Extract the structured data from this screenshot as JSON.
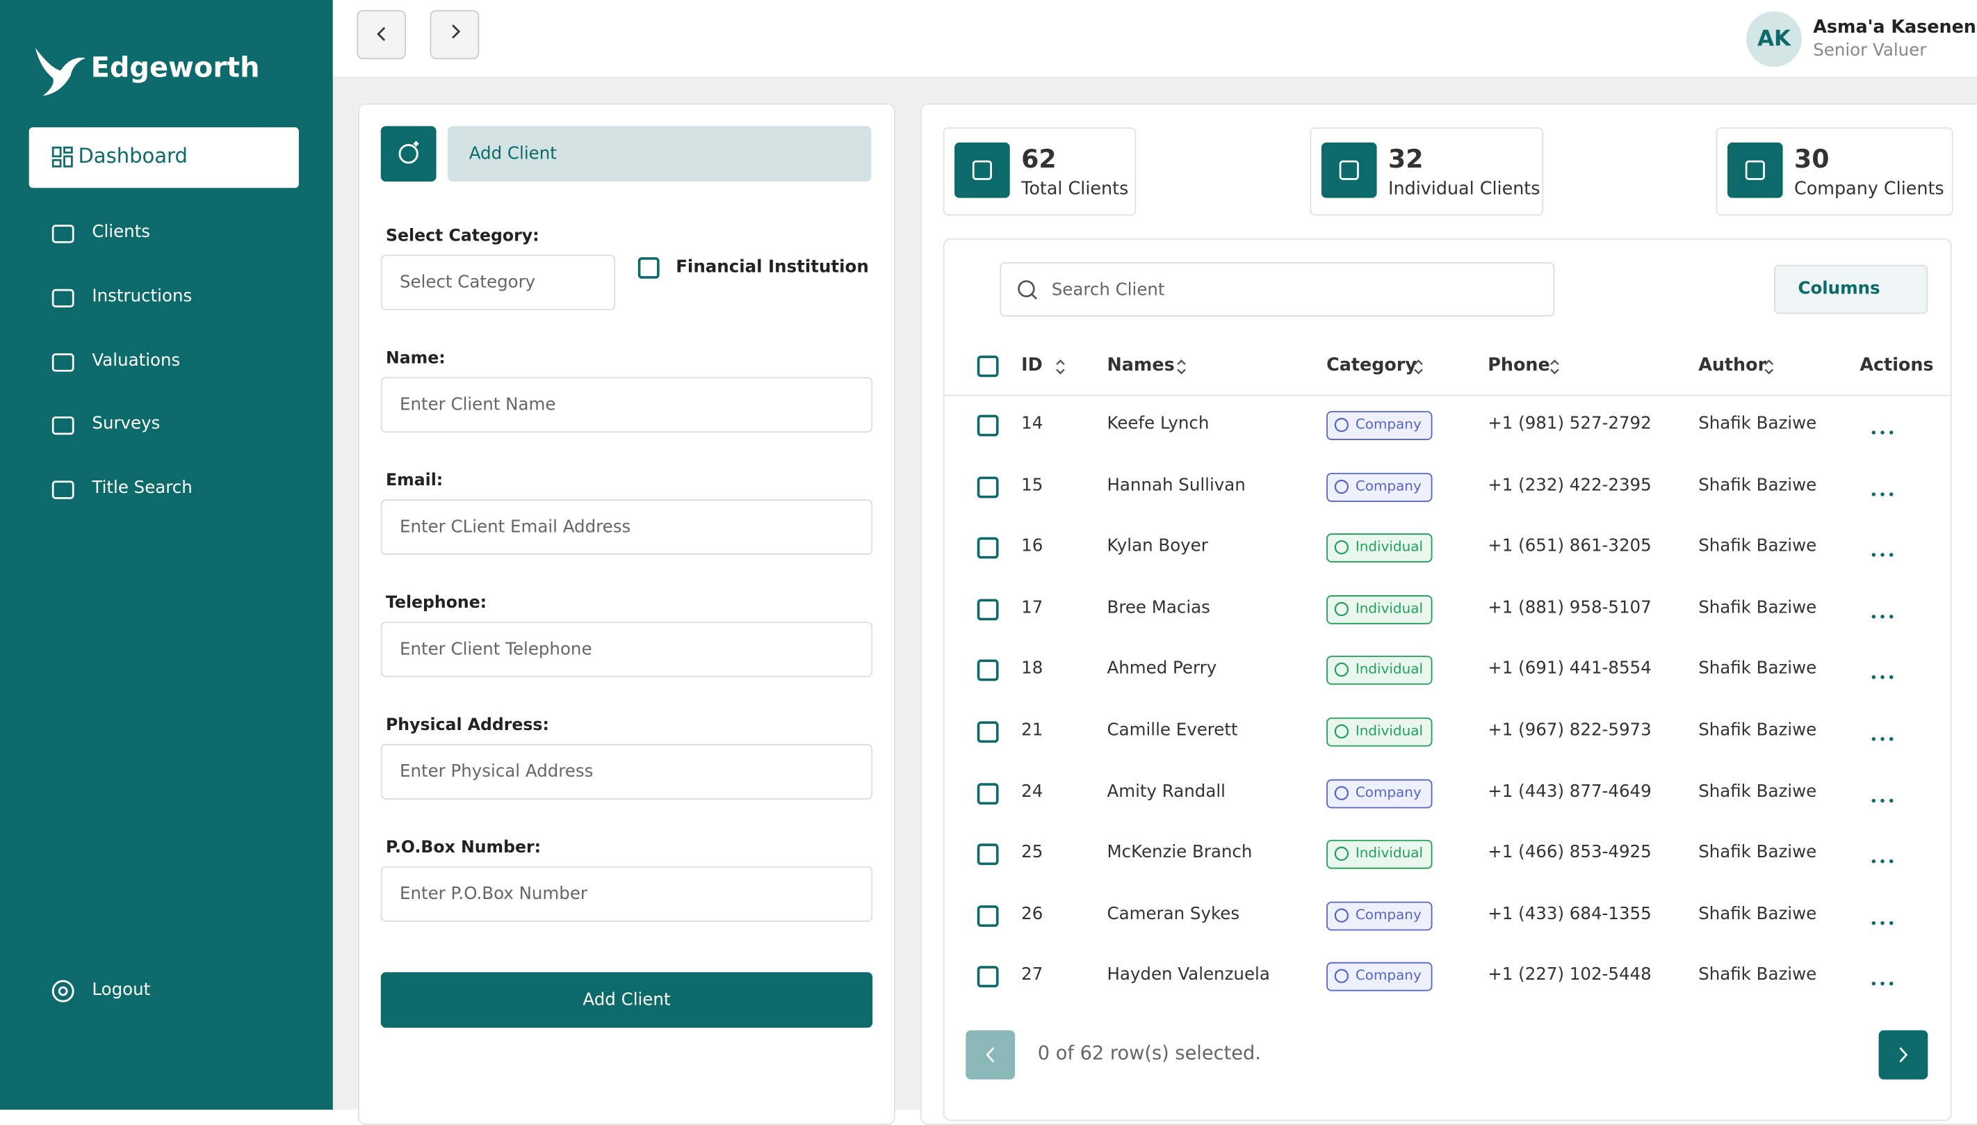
{
  "sidebar": {
    "brand": "Edgeworth",
    "nav": [
      "Dashboard",
      "Clients",
      "Instructions",
      "Valuations",
      "Surveys",
      "Title Search"
    ],
    "logout": "Logout"
  },
  "user": {
    "initials": "AK",
    "name": "Asma'a Kasenene",
    "role": "Senior Valuer"
  },
  "form": {
    "tab": "Add Client",
    "category_label": "Select Category:",
    "category_placeholder": "Select Category",
    "checkbox_label": "Financial Institution",
    "fields": [
      {
        "label": "Name:",
        "placeholder": "Enter Client Name"
      },
      {
        "label": "Email:",
        "placeholder": "Enter CLient Email Address"
      },
      {
        "label": "Telephone:",
        "placeholder": "Enter Client Telephone"
      },
      {
        "label": "Physical Address:",
        "placeholder": "Enter Physical Address"
      },
      {
        "label": "P.O.Box Number:",
        "placeholder": "Enter P.O.Box Number"
      }
    ],
    "submit": "Add Client"
  },
  "stats": [
    {
      "value": "62",
      "label": "Total Clients"
    },
    {
      "value": "32",
      "label": "Individual Clients"
    },
    {
      "value": "30",
      "label": "Company Clients"
    }
  ],
  "table": {
    "search_placeholder": "Search Client",
    "columns_button": "Columns",
    "headers": [
      "ID",
      "Names",
      "Category",
      "Phone",
      "Author",
      "Actions"
    ],
    "rows": [
      [
        "14",
        "Keefe Lynch",
        "Company",
        "+1 (981) 527-2792",
        "Shafik Baziwe"
      ],
      [
        "15",
        "Hannah Sullivan",
        "Company",
        "+1 (232) 422-2395",
        "Shafik Baziwe"
      ],
      [
        "16",
        "Kylan Boyer",
        "Individual",
        "+1 (651) 861-3205",
        "Shafik Baziwe"
      ],
      [
        "17",
        "Bree Macias",
        "Individual",
        "+1 (881) 958-5107",
        "Shafik Baziwe"
      ],
      [
        "18",
        "Ahmed Perry",
        "Individual",
        "+1 (691) 441-8554",
        "Shafik Baziwe"
      ],
      [
        "21",
        "Camille Everett",
        "Individual",
        "+1 (967) 822-5973",
        "Shafik Baziwe"
      ],
      [
        "24",
        "Amity Randall",
        "Company",
        "+1 (443) 877-4649",
        "Shafik Baziwe"
      ],
      [
        "25",
        "McKenzie Branch",
        "Individual",
        "+1 (466) 853-4925",
        "Shafik Baziwe"
      ],
      [
        "26",
        "Cameran Sykes",
        "Company",
        "+1 (433) 684-1355",
        "Shafik Baziwe"
      ],
      [
        "27",
        "Hayden Valenzuela",
        "Company",
        "+1 (227) 102-5448",
        "Shafik Baziwe"
      ]
    ],
    "footer": "0 of 62 row(s) selected."
  }
}
